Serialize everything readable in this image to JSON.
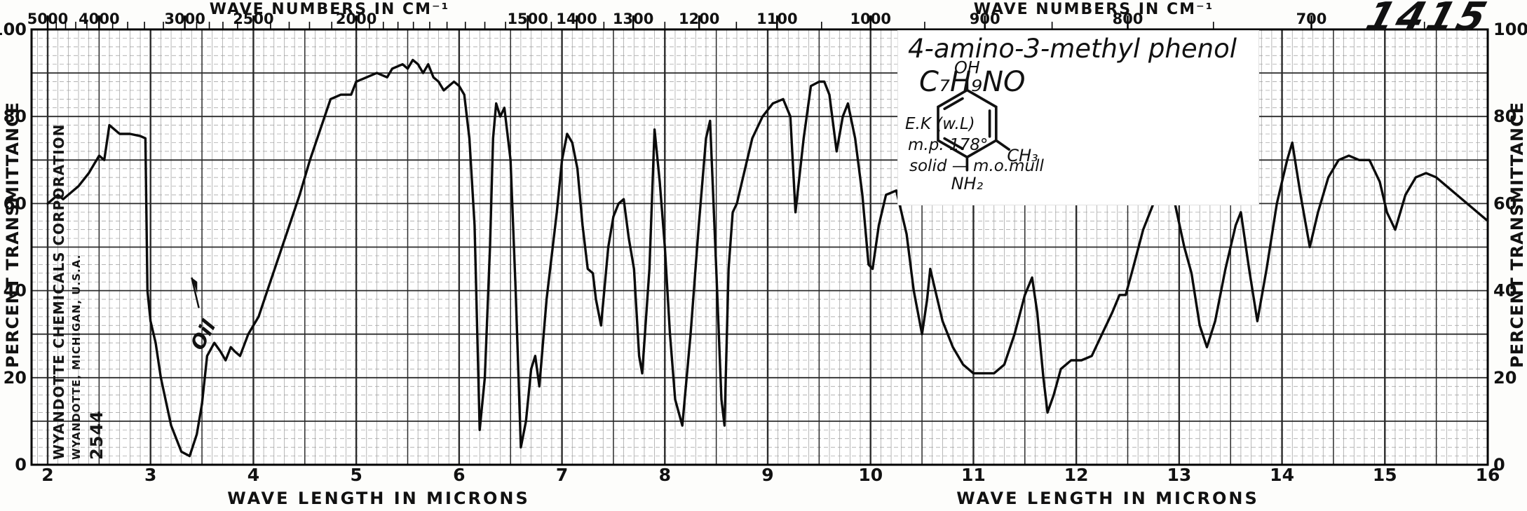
{
  "page": {
    "catalog_number": "1415"
  },
  "colors": {
    "ink": "#0b0b0b",
    "grid_minor": "#9a9a9a",
    "grid_major": "#2b2b2b",
    "paper": "#ffffff"
  },
  "stamp": {
    "line1": "WYANDOTTE CHEMICALS CORPORATION",
    "line2": "WYANDOTTE, MICHIGAN, U.S.A.",
    "number": "2544"
  },
  "annotation_box": {
    "compound": "4-amino-3-methyl phenol",
    "formula": "C₇H₉NO",
    "analyst": "E.K (w.L)",
    "melting_point": "m.p. 178°",
    "sample": "solid — m.o.mull",
    "structure": {
      "top_group": "OH",
      "right_group": "CH₃",
      "bottom_group": "NH₂"
    }
  },
  "oil_note": {
    "text": "Oil"
  },
  "axes": {
    "top_title": "WAVE NUMBERS IN CM⁻¹",
    "bottom_title": "WAVE LENGTH IN MICRONS",
    "y_title": "PERCENT TRANSMITTANCE",
    "wavenumber_ticks": [
      "5000",
      "4000",
      "3000",
      "2500",
      "2000",
      "1500",
      "1400",
      "1300",
      "1200",
      "1100",
      "1000",
      "900",
      "800",
      "700"
    ],
    "micron_ticks": [
      "2",
      "3",
      "4",
      "5",
      "6",
      "7",
      "8",
      "9",
      "10",
      "11",
      "12",
      "13",
      "14",
      "15",
      "16"
    ],
    "transmittance_ticks": [
      "100",
      "80",
      "60",
      "40",
      "20",
      "0"
    ]
  },
  "chart_data": {
    "type": "line",
    "title": "4-amino-3-methyl phenol — infrared spectrum",
    "xlabel": "WAVE LENGTH IN MICRONS",
    "x2label": "WAVE NUMBERS IN CM⁻¹",
    "ylabel": "PERCENT TRANSMITTANCE",
    "xlim": [
      2,
      16
    ],
    "ylim": [
      0,
      100
    ],
    "grid": true,
    "x_microns": [
      2.0,
      2.05,
      2.1,
      2.15,
      2.2,
      2.3,
      2.4,
      2.5,
      2.55,
      2.6,
      2.65,
      2.7,
      2.8,
      2.9,
      2.95,
      2.97,
      3.0,
      3.05,
      3.1,
      3.2,
      3.3,
      3.38,
      3.45,
      3.5,
      3.55,
      3.62,
      3.68,
      3.73,
      3.78,
      3.82,
      3.87,
      3.95,
      4.05,
      4.15,
      4.25,
      4.35,
      4.45,
      4.55,
      4.65,
      4.75,
      4.85,
      4.95,
      5.0,
      5.1,
      5.2,
      5.3,
      5.35,
      5.45,
      5.5,
      5.55,
      5.6,
      5.65,
      5.7,
      5.75,
      5.8,
      5.85,
      5.9,
      5.95,
      6.0,
      6.05,
      6.1,
      6.15,
      6.2,
      6.25,
      6.3,
      6.33,
      6.36,
      6.4,
      6.44,
      6.5,
      6.55,
      6.6,
      6.65,
      6.7,
      6.74,
      6.78,
      6.85,
      6.95,
      7.0,
      7.05,
      7.1,
      7.15,
      7.2,
      7.25,
      7.3,
      7.33,
      7.38,
      7.45,
      7.5,
      7.55,
      7.6,
      7.65,
      7.7,
      7.75,
      7.78,
      7.85,
      7.9,
      7.95,
      8.0,
      8.05,
      8.1,
      8.17,
      8.25,
      8.33,
      8.4,
      8.44,
      8.5,
      8.55,
      8.58,
      8.62,
      8.66,
      8.7,
      8.75,
      8.85,
      8.95,
      9.05,
      9.15,
      9.22,
      9.27,
      9.35,
      9.42,
      9.5,
      9.55,
      9.6,
      9.67,
      9.73,
      9.78,
      9.85,
      9.92,
      9.98,
      10.02,
      10.08,
      10.15,
      10.25,
      10.35,
      10.42,
      10.5,
      10.55,
      10.58,
      10.63,
      10.7,
      10.8,
      10.9,
      11.0,
      11.1,
      11.2,
      11.3,
      11.4,
      11.5,
      11.57,
      11.62,
      11.68,
      11.72,
      11.78,
      11.85,
      11.95,
      12.05,
      12.15,
      12.25,
      12.35,
      12.42,
      12.48,
      12.55,
      12.65,
      12.75,
      12.85,
      12.95,
      13.05,
      13.12,
      13.2,
      13.27,
      13.35,
      13.45,
      13.55,
      13.6,
      13.68,
      13.76,
      13.85,
      13.95,
      14.05,
      14.1,
      14.18,
      14.27,
      14.35,
      14.45,
      14.55,
      14.65,
      14.75,
      14.85,
      14.95,
      15.02,
      15.1,
      15.2,
      15.3,
      15.4,
      15.5,
      15.6,
      15.7,
      15.8,
      15.9,
      16.0
    ],
    "y_transmittance_percent": [
      60,
      61,
      62,
      61,
      62,
      64,
      67,
      71,
      70,
      78,
      77,
      76,
      76,
      75.5,
      75,
      40,
      33,
      28,
      20,
      9,
      3,
      2,
      7,
      14,
      25,
      28,
      26,
      24,
      27,
      26,
      25,
      30,
      34,
      41,
      48,
      55,
      62,
      70,
      77,
      84,
      85,
      85,
      88,
      89,
      90,
      89,
      91,
      92,
      91,
      93,
      92,
      90,
      92,
      89,
      88,
      86,
      87,
      88,
      87,
      85,
      75,
      55,
      8,
      20,
      50,
      75,
      83,
      80,
      82,
      70,
      40,
      4,
      10,
      22,
      25,
      18,
      38,
      58,
      70,
      76,
      74,
      68,
      55,
      45,
      44,
      38,
      32,
      50,
      57,
      60,
      61,
      52,
      45,
      25,
      21,
      45,
      77,
      65,
      50,
      30,
      15,
      9,
      30,
      55,
      75,
      79,
      45,
      15,
      9,
      45,
      58,
      60,
      65,
      75,
      80,
      83,
      84,
      80,
      58,
      75,
      87,
      88,
      88,
      85,
      72,
      80,
      83,
      75,
      62,
      46,
      45,
      55,
      62,
      63,
      53,
      40,
      30,
      38,
      45,
      40,
      33,
      27,
      23,
      21,
      21,
      21,
      23,
      30,
      39,
      43,
      35,
      20,
      12,
      16,
      22,
      24,
      24,
      25,
      30,
      35,
      39,
      39,
      45,
      54,
      60,
      61,
      61,
      50,
      44,
      32,
      27,
      33,
      45,
      55,
      58,
      45,
      33,
      45,
      60,
      70,
      74,
      62,
      50,
      58,
      66,
      70,
      71,
      70,
      70,
      65,
      58,
      54,
      62,
      66,
      67,
      66,
      64,
      62,
      60,
      58,
      56
    ]
  }
}
